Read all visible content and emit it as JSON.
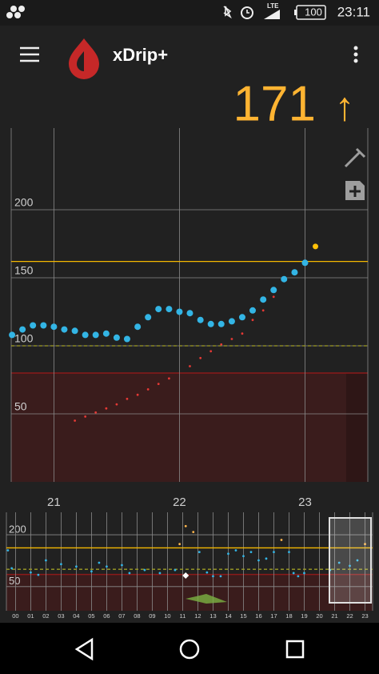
{
  "status_bar": {
    "lte": "LTE",
    "battery": "100",
    "time": "23:11"
  },
  "app_bar": {
    "title": "xDrip+"
  },
  "reading": {
    "value": 171,
    "arrow": "↑"
  },
  "chart_data": [
    {
      "type": "scatter",
      "xlim": [
        20.66,
        23.5
      ],
      "ylim": [
        0,
        260
      ],
      "xticks": [
        21,
        22,
        23
      ],
      "yticks": [
        50,
        100,
        150,
        200
      ],
      "grid": true,
      "high_line": 162,
      "low_line": 100,
      "low_area": 80,
      "series": [
        {
          "color": "#33b5e5",
          "x": [
            20.667,
            20.75,
            20.833,
            20.917,
            21.0,
            21.083,
            21.167,
            21.25,
            21.333,
            21.417,
            21.5,
            21.583,
            21.667,
            21.75,
            21.833,
            21.917,
            22.0,
            22.083,
            22.167,
            22.25,
            22.333,
            22.417,
            22.5,
            22.583,
            22.667,
            22.75,
            22.833,
            22.917,
            23.0
          ],
          "values": [
            108,
            112,
            115,
            115,
            114,
            112,
            111,
            108,
            108,
            109,
            106,
            105,
            114,
            121,
            127,
            127,
            125,
            124,
            119,
            116,
            116,
            118,
            121,
            126,
            134,
            141,
            149,
            154,
            161
          ]
        },
        {
          "color": "#ffc107",
          "x": [
            23.083
          ],
          "values": [
            173
          ]
        },
        {
          "color": "#e53935",
          "x": [
            21.167,
            21.25,
            21.333,
            21.417,
            21.5,
            21.583,
            21.667,
            21.75,
            21.833,
            21.917,
            22.083,
            22.167,
            22.25,
            22.333,
            22.417,
            22.5,
            22.583,
            22.667,
            22.75
          ],
          "values": [
            45,
            48,
            51,
            54,
            57,
            61,
            64,
            68,
            72,
            76,
            85,
            91,
            96,
            101,
            105,
            109,
            119,
            126,
            136
          ]
        }
      ]
    },
    {
      "type": "scatter",
      "xlim": [
        -0.6,
        23.5
      ],
      "ylim": [
        -20,
        265
      ],
      "xticks": [
        {
          "value": 0,
          "label": "00"
        },
        {
          "value": 1,
          "label": "01"
        },
        {
          "value": 2,
          "label": "02"
        },
        {
          "value": 3,
          "label": "03"
        },
        {
          "value": 4,
          "label": "04"
        },
        {
          "value": 5,
          "label": "05"
        },
        {
          "value": 6,
          "label": "06"
        },
        {
          "value": 7,
          "label": "07"
        },
        {
          "value": 8,
          "label": "08"
        },
        {
          "value": 9,
          "label": "09"
        },
        10,
        11,
        12,
        13,
        14,
        15,
        16,
        17,
        18,
        19,
        20,
        21,
        22,
        23
      ],
      "yticks": [
        50,
        200
      ],
      "grid": true,
      "high_line": 162,
      "low_line": 100,
      "low_area": 85,
      "series": [
        {
          "color": "#33b5e5",
          "high_color": "#ffb74d",
          "x": [
            -0.5,
            -0.25,
            1.0,
            1.5,
            2.0,
            3.0,
            4.0,
            5.0,
            5.5,
            6.0,
            7.0,
            7.5,
            8.5,
            9.5,
            10.5,
            10.8,
            11.2,
            11.7,
            12.1,
            12.6,
            13.0,
            13.5,
            14.0,
            14.5,
            15.0,
            15.5,
            16.0,
            16.5,
            17.0,
            17.5,
            18.0,
            18.3,
            18.6,
            19.0,
            20.7,
            21.3,
            22.0,
            22.5,
            23.0
          ],
          "values": [
            155,
            103,
            91,
            84,
            126,
            115,
            108,
            94,
            119,
            108,
            112,
            89,
            98,
            89,
            98,
            173,
            225,
            208,
            150,
            91,
            80,
            80,
            145,
            155,
            138,
            150,
            126,
            131,
            150,
            185,
            150,
            89,
            80,
            89,
            98,
            119,
            110,
            126,
            173
          ]
        },
        {
          "color": "#ffffff",
          "marker": "diamond",
          "x": [
            11.2
          ],
          "values": [
            82
          ]
        }
      ]
    }
  ]
}
